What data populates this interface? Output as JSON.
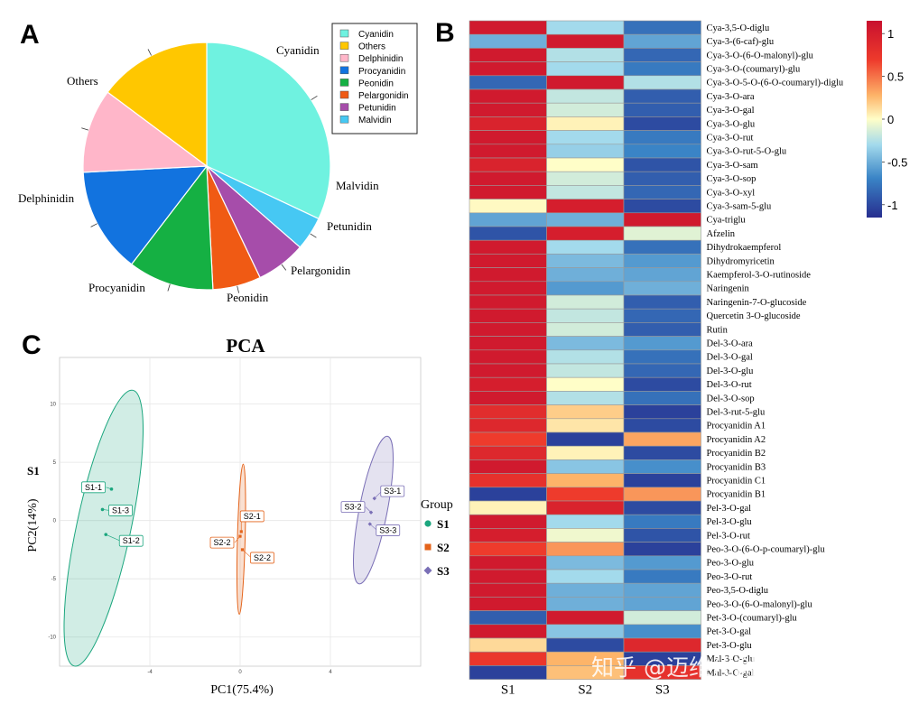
{
  "panels": {
    "a": "A",
    "b": "B",
    "c": "C"
  },
  "colors": {
    "Cyanidin": "#6FF2E0",
    "Others": "#FFC700",
    "Delphinidin": "#FFB6C9",
    "Procyanidin": "#1273DF",
    "Peonidin": "#15B043",
    "Pelargonidin": "#F05A14",
    "Petunidin": "#A64DAA",
    "Malvidin": "#46C8F3",
    "S1": "#1BA67E",
    "S2": "#E4631A",
    "S3": "#7A6FB6",
    "heat_low": "#272E8F",
    "heat_mid": "#FFFEC8",
    "heat_high": "#C8102E"
  },
  "watermark": "知乎 @迈维代谢MetWare",
  "group_legend": {
    "title": "Group",
    "labels": [
      "S1",
      "S2",
      "S3"
    ]
  },
  "chart_data": [
    {
      "type": "pie",
      "legend_position": "top-right",
      "legend": [
        "Cyanidin",
        "Others",
        "Delphinidin",
        "Procyanidin",
        "Peonidin",
        "Pelargonidin",
        "Petunidin",
        "Malvidin"
      ],
      "slices": [
        {
          "label": "Cyanidin",
          "value": 0.32
        },
        {
          "label": "Malvidin",
          "value": 0.044
        },
        {
          "label": "Petunidin",
          "value": 0.065
        },
        {
          "label": "Pelargonidin",
          "value": 0.063
        },
        {
          "label": "Peonidin",
          "value": 0.112
        },
        {
          "label": "Procyanidin",
          "value": 0.138
        },
        {
          "label": "Delphinidin",
          "value": 0.11
        },
        {
          "label": "Others",
          "value": 0.148
        }
      ]
    },
    {
      "type": "heatmap",
      "columns": [
        "S1",
        "S2",
        "S3"
      ],
      "colorbar": {
        "ticks": [
          1,
          0.5,
          0,
          -0.5,
          -1
        ],
        "range": [
          -1.15,
          1.15
        ]
      },
      "rows": [
        {
          "label": "Cya-3,5-O-diglu",
          "values": [
            1.05,
            -0.3,
            -0.8
          ]
        },
        {
          "label": "Cya-3-(6-caf)-glu",
          "values": [
            -0.5,
            1.05,
            -0.55
          ]
        },
        {
          "label": "Cya-3-O-(6-O-malonyl)-glu",
          "values": [
            1.05,
            -0.25,
            -0.85
          ]
        },
        {
          "label": "Cya-3-O-(coumaryl)-glu",
          "values": [
            1.05,
            -0.3,
            -0.75
          ]
        },
        {
          "label": "Cya-3-O-5-O-(6-O-coumaryl)-diglu",
          "values": [
            -0.85,
            1.05,
            -0.25
          ]
        },
        {
          "label": "Cya-3-O-ara",
          "values": [
            1.05,
            -0.2,
            -0.9
          ]
        },
        {
          "label": "Cya-3-O-gal",
          "values": [
            1.05,
            -0.15,
            -0.9
          ]
        },
        {
          "label": "Cya-3-O-glu",
          "values": [
            0.95,
            0.05,
            -1.0
          ]
        },
        {
          "label": "Cya-3-O-rut",
          "values": [
            1.05,
            -0.3,
            -0.75
          ]
        },
        {
          "label": "Cya-3-O-rut-5-O-glu",
          "values": [
            1.05,
            -0.35,
            -0.7
          ]
        },
        {
          "label": "Cya-3-O-sam",
          "values": [
            0.95,
            0.0,
            -0.95
          ]
        },
        {
          "label": "Cya-3-O-sop",
          "values": [
            1.05,
            -0.15,
            -0.9
          ]
        },
        {
          "label": "Cya-3-O-xyl",
          "values": [
            1.05,
            -0.2,
            -0.85
          ]
        },
        {
          "label": "Cya-3-sam-5-glu",
          "values": [
            0.02,
            1.0,
            -1.0
          ]
        },
        {
          "label": "Cya-triglu",
          "values": [
            -0.55,
            -0.5,
            1.05
          ]
        },
        {
          "label": "Afzelin",
          "values": [
            -0.95,
            1.0,
            -0.1
          ]
        },
        {
          "label": "Dihydrokaempferol",
          "values": [
            1.05,
            -0.3,
            -0.8
          ]
        },
        {
          "label": "Dihydromyricetin",
          "values": [
            1.05,
            -0.45,
            -0.6
          ]
        },
        {
          "label": "Kaempferol-3-O-rutinoside",
          "values": [
            1.05,
            -0.5,
            -0.55
          ]
        },
        {
          "label": "Naringenin",
          "values": [
            1.05,
            -0.6,
            -0.5
          ]
        },
        {
          "label": "Naringenin-7-O-glucoside",
          "values": [
            1.05,
            -0.15,
            -0.9
          ]
        },
        {
          "label": "Quercetin 3-O-glucoside",
          "values": [
            1.05,
            -0.2,
            -0.85
          ]
        },
        {
          "label": "Rutin",
          "values": [
            1.05,
            -0.15,
            -0.9
          ]
        },
        {
          "label": "Del-3-O-ara",
          "values": [
            1.05,
            -0.45,
            -0.6
          ]
        },
        {
          "label": "Del-3-O-gal",
          "values": [
            1.05,
            -0.25,
            -0.8
          ]
        },
        {
          "label": "Del-3-O-glu",
          "values": [
            1.05,
            -0.2,
            -0.85
          ]
        },
        {
          "label": "Del-3-O-rut",
          "values": [
            1.0,
            0.0,
            -1.0
          ]
        },
        {
          "label": "Del-3-O-sop",
          "values": [
            1.05,
            -0.25,
            -0.8
          ]
        },
        {
          "label": "Del-3-rut-5-glu",
          "values": [
            0.85,
            0.2,
            -1.05
          ]
        },
        {
          "label": "Procyanidin A1",
          "values": [
            0.9,
            0.1,
            -1.0
          ]
        },
        {
          "label": "Procyanidin A2",
          "values": [
            0.7,
            -1.05,
            0.35
          ]
        },
        {
          "label": "Procyanidin B2",
          "values": [
            0.9,
            0.05,
            -1.0
          ]
        },
        {
          "label": "Procyanidin B3",
          "values": [
            1.05,
            -0.4,
            -0.65
          ]
        },
        {
          "label": "Procyanidin C1",
          "values": [
            0.8,
            0.3,
            -1.05
          ]
        },
        {
          "label": "Procyanidin B1",
          "values": [
            -1.05,
            0.7,
            0.4
          ]
        },
        {
          "label": "Pel-3-O-gal",
          "values": [
            0.05,
            0.95,
            -1.0
          ]
        },
        {
          "label": "Pel-3-O-glu",
          "values": [
            1.05,
            -0.3,
            -0.75
          ]
        },
        {
          "label": "Pel-3-O-rut",
          "values": [
            1.0,
            -0.05,
            -0.95
          ]
        },
        {
          "label": "Peo-3-O-(6-O-p-coumaryl)-glu",
          "values": [
            0.7,
            0.4,
            -1.05
          ]
        },
        {
          "label": "Peo-3-O-glu",
          "values": [
            1.05,
            -0.45,
            -0.6
          ]
        },
        {
          "label": "Peo-3-O-rut",
          "values": [
            1.05,
            -0.3,
            -0.75
          ]
        },
        {
          "label": "Peo-3,5-O-diglu",
          "values": [
            1.05,
            -0.5,
            -0.55
          ]
        },
        {
          "label": "Peo-3-O-(6-O-malonyl)-glu",
          "values": [
            1.05,
            -0.5,
            -0.55
          ]
        },
        {
          "label": "Pet-3-O-(coumaryl)-glu",
          "values": [
            -0.9,
            1.05,
            -0.15
          ]
        },
        {
          "label": "Pet-3-O-gal",
          "values": [
            1.05,
            -0.4,
            -0.65
          ]
        },
        {
          "label": "Pet-3-O-glu",
          "values": [
            0.15,
            -1.0,
            0.9
          ]
        },
        {
          "label": "Mal-3-O-glu",
          "values": [
            0.75,
            0.3,
            -1.05
          ]
        },
        {
          "label": "Mal-3-O-gal",
          "values": [
            -1.05,
            0.25,
            0.8
          ]
        }
      ]
    },
    {
      "type": "scatter",
      "title": "PCA",
      "xlabel": "PC1(75.4%)",
      "ylabel": "PC2(14%)",
      "xlim": [
        -8,
        8
      ],
      "ylim": [
        -12.5,
        14
      ],
      "xticks": [
        -4,
        0,
        4
      ],
      "yticks": [
        10,
        5,
        0,
        -5,
        -10
      ],
      "grid": true,
      "legend_position": "right",
      "series": [
        {
          "name": "S1",
          "marker": "circle",
          "points": [
            {
              "label": "S1-1",
              "x": -5.7,
              "y": 2.7
            },
            {
              "label": "S1-3",
              "x": -6.1,
              "y": 0.95
            },
            {
              "label": "S1-2",
              "x": -5.95,
              "y": -1.2
            }
          ],
          "ellipse": {
            "cx": -6.05,
            "cy": -0.65,
            "rx": 1.2,
            "ry": 12.1,
            "rotate": 12
          }
        },
        {
          "name": "S2",
          "marker": "square",
          "points": [
            {
              "label": "S2-1",
              "x": 0.05,
              "y": -0.95
            },
            {
              "label": "S2-2",
              "x": 0.0,
              "y": -1.35
            },
            {
              "label": "S2-2",
              "x": 0.1,
              "y": -2.5
            }
          ],
          "ellipse": {
            "cx": 0.05,
            "cy": -1.6,
            "rx": 0.17,
            "ry": 6.45,
            "rotate": 1.5
          }
        },
        {
          "name": "S3",
          "marker": "diamond",
          "points": [
            {
              "label": "S3-1",
              "x": 5.95,
              "y": 1.9
            },
            {
              "label": "S3-2",
              "x": 5.8,
              "y": 0.7
            },
            {
              "label": "S3-3",
              "x": 5.75,
              "y": -0.3
            }
          ],
          "ellipse": {
            "cx": 5.9,
            "cy": 0.9,
            "rx": 0.62,
            "ry": 6.45,
            "rotate": 11
          }
        }
      ]
    }
  ]
}
